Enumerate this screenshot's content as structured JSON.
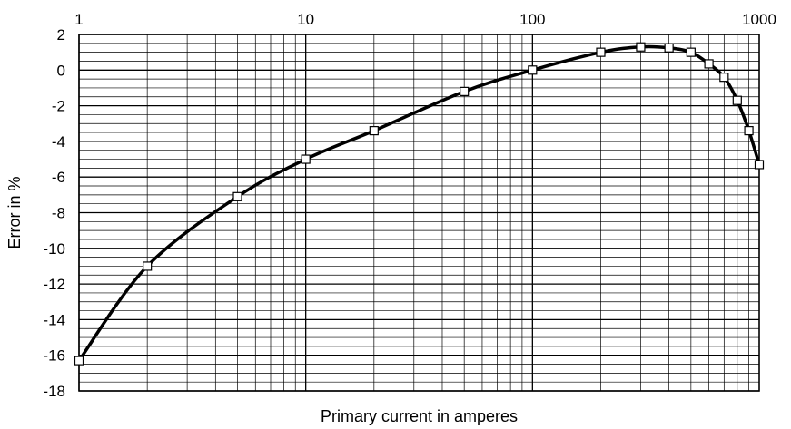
{
  "chart_data": {
    "type": "line",
    "title": "",
    "xlabel": "Primary current in amperes",
    "ylabel": "Error in %",
    "x_scale": "log",
    "xlim": [
      1,
      1000
    ],
    "ylim": [
      -18,
      2
    ],
    "x_ticks": [
      1,
      10,
      100,
      1000
    ],
    "x_tick_labels": [
      "1",
      "10",
      "100",
      "1000"
    ],
    "y_ticks": [
      2,
      0,
      -2,
      -4,
      -6,
      -8,
      -10,
      -12,
      -14,
      -16,
      -18
    ],
    "y_tick_labels": [
      "2",
      "0",
      "-2",
      "-4",
      "-6",
      "-8",
      "-10",
      "-12",
      "-14",
      "-16",
      "-18"
    ],
    "grid": true,
    "legend": "none",
    "series": [
      {
        "line_color": "#000000",
        "marker": "square",
        "x": [
          1,
          2,
          5,
          10,
          20,
          50,
          100,
          200,
          300,
          400,
          500,
          600,
          700,
          800,
          900,
          1000
        ],
        "y": [
          -16.3,
          -11.0,
          -7.1,
          -5.0,
          -3.4,
          -1.2,
          0.0,
          1.0,
          1.3,
          1.25,
          1.0,
          0.35,
          -0.4,
          -1.7,
          -3.4,
          -5.3
        ]
      }
    ]
  }
}
